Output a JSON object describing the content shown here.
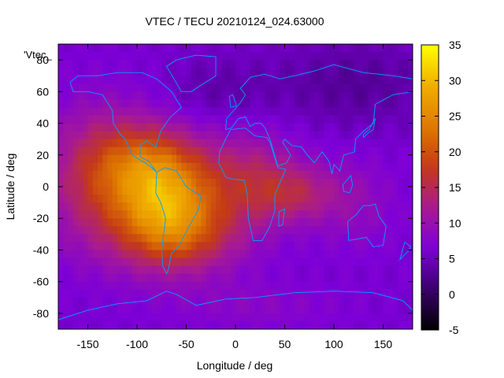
{
  "chart_data": {
    "type": "heatmap",
    "title": "VTEC / TECU 20210124_024.63000",
    "xlabel": "Longitude / deg",
    "ylabel": "Latitude / deg",
    "key_label": "'Vtec_",
    "xlim": [
      -180,
      180
    ],
    "ylim": [
      -90,
      90
    ],
    "xticks": [
      -150,
      -100,
      -50,
      0,
      50,
      100,
      150
    ],
    "yticks": [
      -80,
      -60,
      -40,
      -20,
      0,
      20,
      40,
      60,
      80
    ],
    "colorbar": {
      "range": [
        -5,
        35
      ],
      "ticks": [
        -5,
        0,
        5,
        10,
        15,
        20,
        25,
        30,
        35
      ],
      "palette": [
        "#000000",
        "#3a006c",
        "#7d00d8",
        "#a81a92",
        "#c43a16",
        "#df7a00",
        "#f0ae00",
        "#ffff00"
      ]
    },
    "field_features": {
      "background_level": 6,
      "description_points": [
        {
          "lon": -70,
          "lat": -8,
          "value": 34
        },
        {
          "lon": -150,
          "lat": 10,
          "value": 18
        },
        {
          "lon": -60,
          "lat": -35,
          "value": 19
        },
        {
          "lon": 30,
          "lat": 10,
          "value": 17
        },
        {
          "lon": 120,
          "lat": -10,
          "value": 9
        },
        {
          "lon": 120,
          "lat": 60,
          "value": 3
        },
        {
          "lon": 0,
          "lat": -80,
          "value": 5
        }
      ]
    },
    "coastline_color": "#00a0ff"
  }
}
